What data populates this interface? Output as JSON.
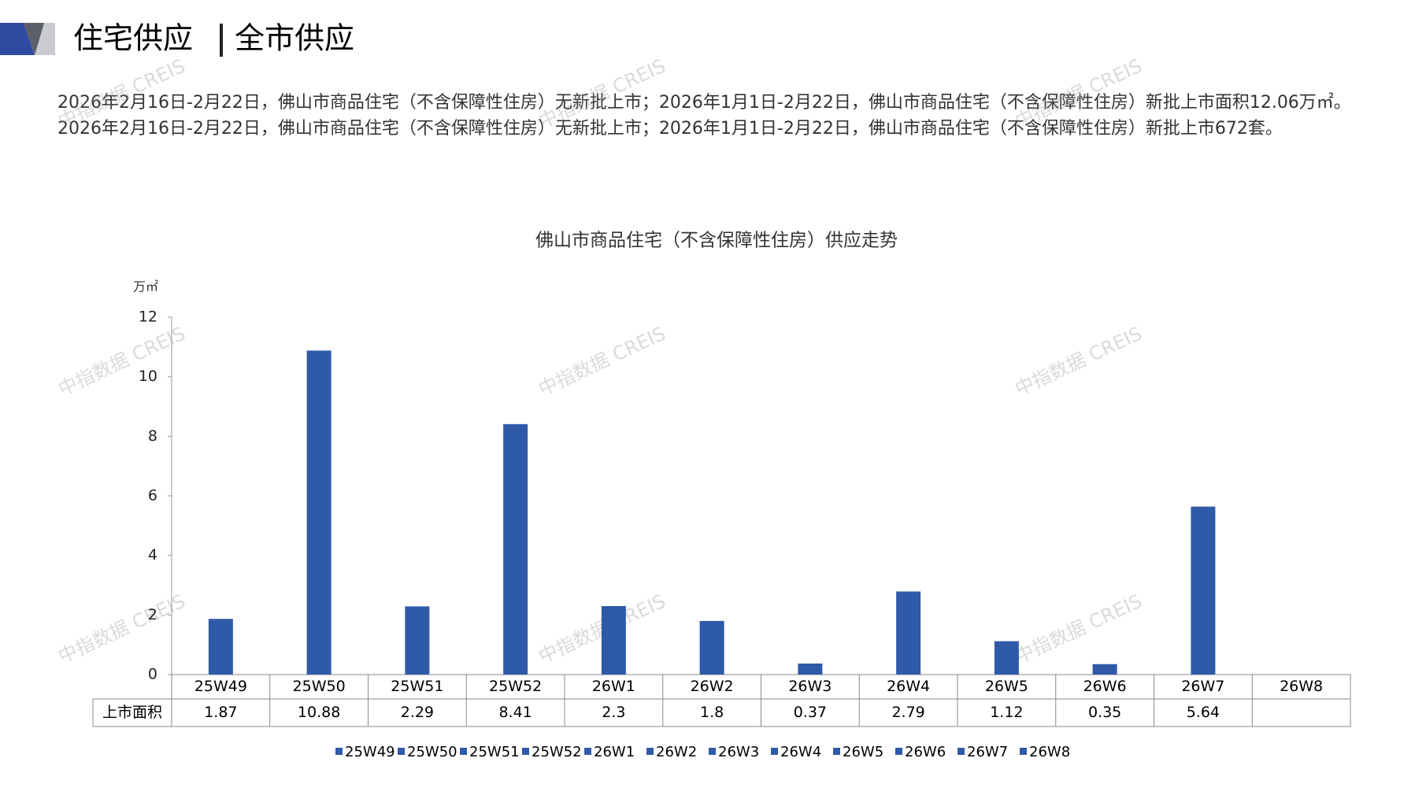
{
  "header": {
    "title_left": "住宅供应",
    "title_right": "全市供应"
  },
  "description": "2026年2月16日-2月22日，佛山市商品住宅（不含保障性住房）无新批上市；2026年1月1日-2月22日，佛山市商品住宅（不含保障性住房）新批上市面积12.06万㎡。2026年2月16日-2月22日，佛山市商品住宅（不含保障性住房）无新批上市；2026年1月1日-2月22日，佛山市商品住宅（不含保障性住房）新批上市672套。",
  "watermark": "中指数据 CREIS",
  "chart_data": {
    "type": "bar",
    "title": "佛山市商品住宅（不含保障性住房）供应走势",
    "y_label": "万㎡",
    "categories": [
      "25W49",
      "25W50",
      "25W51",
      "25W52",
      "26W1",
      "26W2",
      "26W3",
      "26W4",
      "26W5",
      "26W6",
      "26W7",
      "26W8"
    ],
    "series": [
      {
        "name": "上市面积",
        "color": "#2f5aa8",
        "values": [
          1.87,
          10.88,
          2.29,
          8.41,
          2.3,
          1.8,
          0.37,
          2.79,
          1.12,
          0.35,
          5.64,
          null
        ]
      }
    ],
    "ylim": [
      0,
      12
    ],
    "yticks": [
      0,
      2,
      4,
      6,
      8,
      10,
      12
    ]
  }
}
